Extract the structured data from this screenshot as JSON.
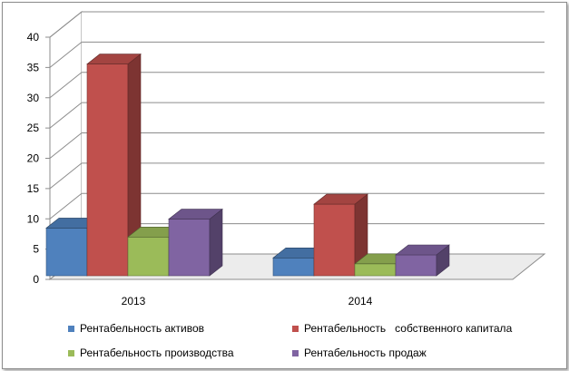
{
  "chart_data": {
    "type": "bar",
    "variant": "3d-clustered-column",
    "title": "",
    "xlabel": "",
    "ylabel": "",
    "categories": [
      "2013",
      "2014"
    ],
    "ylim": [
      0,
      40
    ],
    "yticks": [
      0,
      5,
      10,
      15,
      20,
      25,
      30,
      35,
      40
    ],
    "grid": true,
    "legend_position": "bottom",
    "series": [
      {
        "name": "Рентабельность активов",
        "color": "#4f81bd",
        "values": [
          8,
          3
        ]
      },
      {
        "name": "Рентабельность   собственного капитала",
        "color": "#c0504d",
        "values": [
          35.5,
          12
        ]
      },
      {
        "name": "Рентабельность производства",
        "color": "#9bbb59",
        "values": [
          6.5,
          2
        ]
      },
      {
        "name": "Рентабельность продаж",
        "color": "#8064a2",
        "values": [
          9.5,
          3.5
        ]
      }
    ]
  }
}
